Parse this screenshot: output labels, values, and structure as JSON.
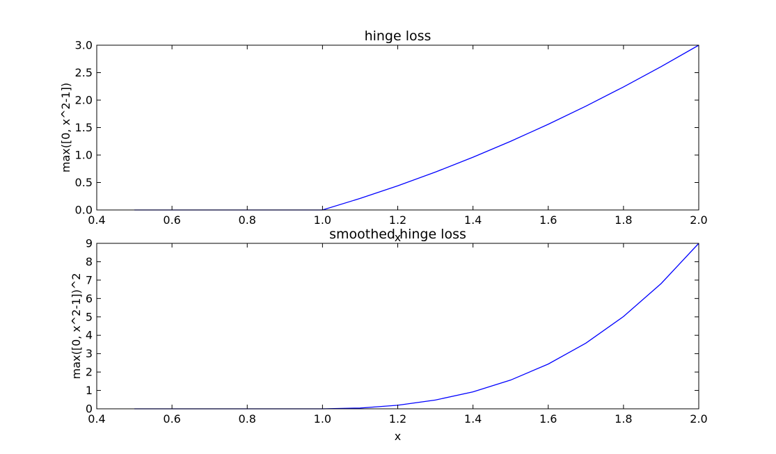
{
  "chart_data": [
    {
      "type": "line",
      "title": "hinge loss",
      "xlabel": "x",
      "ylabel": "max([0, x^2-1])",
      "xlim": [
        0.4,
        2.0
      ],
      "ylim": [
        0.0,
        3.0
      ],
      "xticks": [
        "0.4",
        "0.6",
        "0.8",
        "1.0",
        "1.2",
        "1.4",
        "1.6",
        "1.8",
        "2.0"
      ],
      "yticks": [
        "0.0",
        "0.5",
        "1.0",
        "1.5",
        "2.0",
        "2.5",
        "3.0"
      ],
      "grid": false,
      "series": [
        {
          "color": "#0000ff",
          "x": [
            0.5,
            0.6,
            0.7,
            0.8,
            0.9,
            1.0,
            1.1,
            1.2,
            1.3,
            1.4,
            1.5,
            1.6,
            1.7,
            1.8,
            1.9,
            2.0
          ],
          "y": [
            0,
            0,
            0,
            0,
            0,
            0,
            0.21,
            0.44,
            0.69,
            0.96,
            1.25,
            1.56,
            1.89,
            2.24,
            2.61,
            3.0
          ]
        }
      ]
    },
    {
      "type": "line",
      "title": "smoothed hinge loss",
      "xlabel": "x",
      "ylabel": "max([0, x^2-1])^2",
      "xlim": [
        0.4,
        2.0
      ],
      "ylim": [
        0,
        9
      ],
      "xticks": [
        "0.4",
        "0.6",
        "0.8",
        "1.0",
        "1.2",
        "1.4",
        "1.6",
        "1.8",
        "2.0"
      ],
      "yticks": [
        "0",
        "1",
        "2",
        "3",
        "4",
        "5",
        "6",
        "7",
        "8",
        "9"
      ],
      "grid": false,
      "series": [
        {
          "color": "#0000ff",
          "x": [
            0.5,
            0.6,
            0.7,
            0.8,
            0.9,
            1.0,
            1.1,
            1.2,
            1.3,
            1.4,
            1.5,
            1.6,
            1.7,
            1.8,
            1.9,
            2.0
          ],
          "y": [
            0,
            0,
            0,
            0,
            0,
            0,
            0.044,
            0.194,
            0.476,
            0.922,
            1.563,
            2.434,
            3.572,
            5.018,
            6.812,
            9.0
          ]
        }
      ]
    }
  ]
}
